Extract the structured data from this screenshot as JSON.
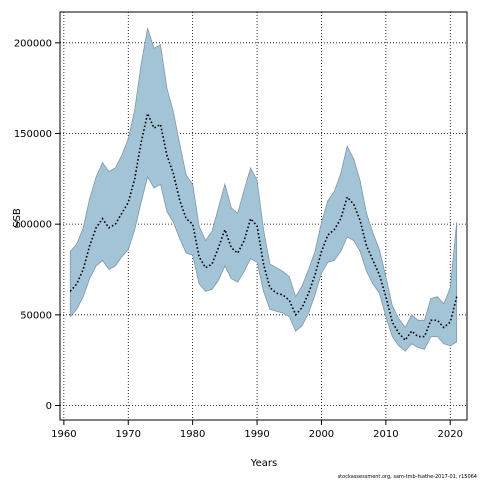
{
  "chart_data": {
    "type": "area",
    "xlabel": "Years",
    "ylabel": "SSB",
    "xlim": [
      1959.4,
      2022.6
    ],
    "ylim": [
      -8000,
      217000
    ],
    "x_ticks": [
      1960,
      1970,
      1980,
      1990,
      2000,
      2010,
      2020
    ],
    "x_tick_labels": [
      "1960",
      "1970",
      "1980",
      "1990",
      "2000",
      "2010",
      "2020"
    ],
    "y_ticks": [
      0,
      50000,
      100000,
      150000,
      200000
    ],
    "y_tick_labels": [
      "0",
      "50000",
      "100000",
      "150000",
      "200000"
    ],
    "grid": true,
    "credit": "stockassessment.org, sam-tmb-fsathe-2017-01, r15064",
    "colors": {
      "band": "#a3c4d7",
      "band_edge": "#7f97a6",
      "line": "#000000"
    },
    "series": [
      {
        "style": "dotted",
        "x": [
          1961,
          1962,
          1963,
          1964,
          1965,
          1966,
          1967,
          1968,
          1969,
          1970,
          1971,
          1972,
          1973,
          1974,
          1975,
          1976,
          1977,
          1978,
          1979,
          1980,
          1981,
          1982,
          1983,
          1984,
          1985,
          1986,
          1987,
          1988,
          1989,
          1990,
          1991,
          1992,
          1993,
          1994,
          1995,
          1996,
          1997,
          1998,
          1999,
          2000,
          2001,
          2002,
          2003,
          2004,
          2005,
          2006,
          2007,
          2008,
          2009,
          2010,
          2011,
          2012,
          2013,
          2014,
          2015,
          2016,
          2017,
          2018,
          2019,
          2020,
          2021
        ],
        "estimate": [
          63000,
          67000,
          75000,
          88000,
          98000,
          103000,
          98000,
          100000,
          106000,
          112000,
          125000,
          145000,
          161000,
          153000,
          155000,
          138000,
          128000,
          113000,
          103000,
          100000,
          82000,
          76000,
          78000,
          87000,
          97000,
          87000,
          84000,
          91000,
          103000,
          99000,
          78000,
          65000,
          62000,
          61000,
          58000,
          50000,
          54000,
          62000,
          72000,
          85000,
          94000,
          97000,
          103000,
          115000,
          111000,
          102000,
          88000,
          80000,
          72000,
          60000,
          46000,
          40000,
          36000,
          41000,
          38000,
          38000,
          47000,
          47000,
          43000,
          46000,
          60000
        ],
        "lower": [
          49000,
          53000,
          60000,
          70000,
          77000,
          80000,
          75000,
          77000,
          82000,
          86000,
          97000,
          112000,
          126000,
          120000,
          122000,
          107000,
          101000,
          92000,
          84000,
          83000,
          67000,
          63000,
          64000,
          69000,
          77000,
          70000,
          68000,
          74000,
          81000,
          79000,
          63000,
          53000,
          52000,
          51000,
          49000,
          41000,
          44000,
          51000,
          61000,
          73000,
          79000,
          80000,
          85000,
          93000,
          91000,
          85000,
          74000,
          67000,
          62000,
          49000,
          38000,
          33000,
          30000,
          34000,
          32000,
          31000,
          38000,
          38000,
          34000,
          33000,
          35000
        ],
        "upper": [
          85000,
          89000,
          98000,
          114000,
          126000,
          134000,
          129000,
          131000,
          138000,
          147000,
          163000,
          188000,
          208000,
          197000,
          199000,
          175000,
          162000,
          144000,
          127000,
          122000,
          99000,
          91000,
          96000,
          109000,
          122000,
          109000,
          106000,
          119000,
          131000,
          124000,
          97000,
          78000,
          76000,
          74000,
          71000,
          60000,
          66000,
          75000,
          85000,
          101000,
          113000,
          118000,
          128000,
          143000,
          136000,
          124000,
          106000,
          95000,
          86000,
          71000,
          55000,
          48000,
          43000,
          50000,
          47000,
          47000,
          59000,
          60000,
          56000,
          65000,
          101000
        ]
      }
    ]
  }
}
